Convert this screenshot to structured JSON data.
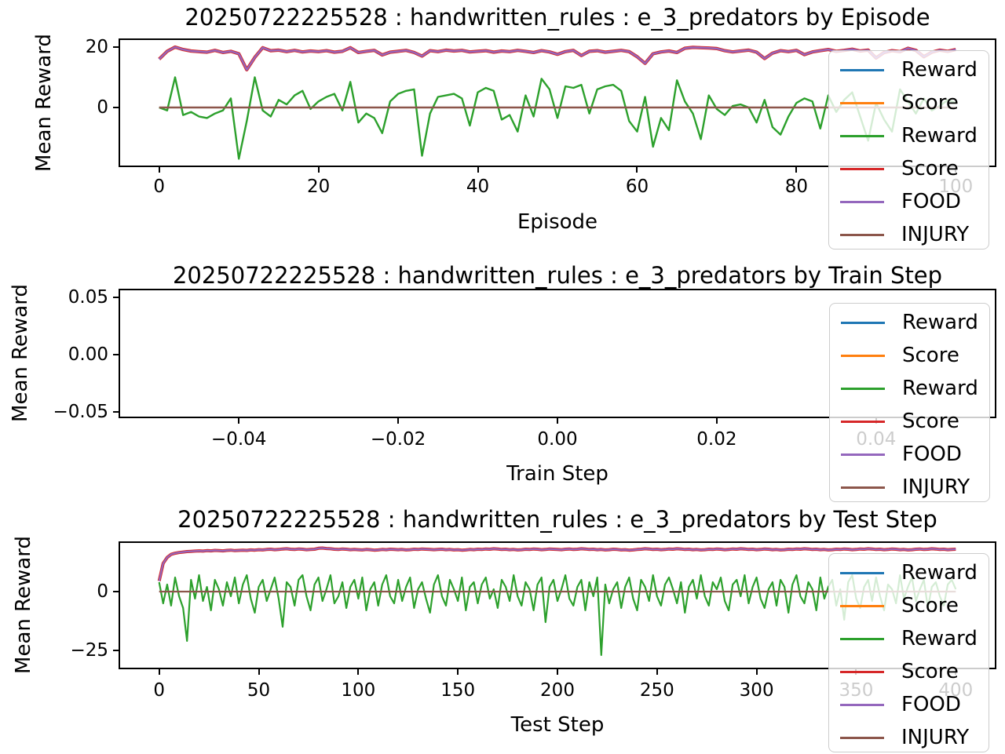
{
  "figure": {
    "background": "#ffffff"
  },
  "palette": {
    "blue": "#1f77b4",
    "orange": "#ff7f0e",
    "green": "#2ca02c",
    "red": "#d62728",
    "purple": "#9467bd",
    "brown": "#8c564b"
  },
  "legend": {
    "entries": [
      {
        "label": "Reward",
        "color": "#1f77b4"
      },
      {
        "label": "Score",
        "color": "#ff7f0e"
      },
      {
        "label": "Reward",
        "color": "#2ca02c"
      },
      {
        "label": "Score",
        "color": "#d62728"
      },
      {
        "label": "FOOD",
        "color": "#9467bd"
      },
      {
        "label": "INJURY",
        "color": "#8c564b"
      }
    ],
    "location": "upper right, overflowing axes",
    "frame_alpha": 0.8
  },
  "chart_data": [
    {
      "type": "line",
      "title": "20250722225528 : handwritten_rules : e_3_predators by Episode",
      "xlabel": "Episode",
      "ylabel": "Mean Reward",
      "xlim": [
        -5,
        105
      ],
      "ylim": [
        -19.5,
        22.6
      ],
      "grid": false,
      "xticks": [
        {
          "v": 0,
          "label": "0"
        },
        {
          "v": 20,
          "label": "20"
        },
        {
          "v": 40,
          "label": "40"
        },
        {
          "v": 60,
          "label": "60"
        },
        {
          "v": 80,
          "label": "80"
        },
        {
          "v": 100,
          "label": "100"
        }
      ],
      "yticks": [
        {
          "v": 20,
          "label": "20"
        },
        {
          "v": 0,
          "label": "0"
        }
      ],
      "x_start": 0,
      "x_step": 1,
      "series": [
        {
          "name": "Reward",
          "color": "#1f77b4",
          "visible": false,
          "note": "not visible, hidden behind other lines"
        },
        {
          "name": "Score",
          "color": "#ff7f0e",
          "visible": false,
          "note": "not visible, hidden behind FOOD"
        },
        {
          "name": "Reward",
          "color": "#2ca02c",
          "width": 2.4,
          "values": [
            0.0,
            -1.0,
            10.0,
            -2.5,
            -1.5,
            -3.0,
            -3.5,
            -2.0,
            -1.0,
            3.0,
            -17.0,
            -4.5,
            10.0,
            -1.0,
            -3.0,
            2.5,
            1.0,
            4.0,
            5.5,
            -0.5,
            2.0,
            3.5,
            4.5,
            -1.0,
            8.5,
            -5.0,
            -2.0,
            -3.5,
            -8.5,
            2.0,
            4.5,
            5.5,
            6.0,
            -16.0,
            -2.0,
            3.5,
            4.0,
            4.5,
            3.0,
            -6.0,
            5.0,
            6.5,
            5.5,
            -4.0,
            -2.5,
            -8.0,
            4.0,
            -3.0,
            9.5,
            6.0,
            -3.5,
            7.0,
            6.5,
            7.5,
            -2.0,
            6.0,
            7.0,
            7.5,
            5.5,
            -4.5,
            -8.0,
            3.5,
            -13.0,
            -3.5,
            -7.5,
            9.0,
            2.0,
            -2.0,
            -10.5,
            4.0,
            -0.5,
            -2.5,
            0.5,
            1.0,
            0.0,
            -5.0,
            2.5,
            -6.5,
            -9.0,
            -3.0,
            1.5,
            3.0,
            2.0,
            -7.0,
            4.0,
            -1.5,
            2.5,
            5.0,
            -3.0,
            -11.0,
            1.5,
            -4.0,
            -8.0,
            6.0,
            2.0,
            -2.0,
            3.0,
            -1.0,
            0.5,
            2.5,
            1.5
          ]
        },
        {
          "name": "Score",
          "color": "#d62728",
          "same_as": "FOOD",
          "width": 4.2,
          "note": "coincident with FOOD, shows as thin fringe"
        },
        {
          "name": "FOOD",
          "color": "#9467bd",
          "width": 2.4,
          "values": [
            16.0,
            18.6,
            20.0,
            19.2,
            18.7,
            18.5,
            18.3,
            18.9,
            18.2,
            18.6,
            17.8,
            12.5,
            16.6,
            19.8,
            18.8,
            19.0,
            18.5,
            18.9,
            18.4,
            18.7,
            18.5,
            18.8,
            18.3,
            18.6,
            19.8,
            18.2,
            18.6,
            18.9,
            17.4,
            18.3,
            18.6,
            18.9,
            18.2,
            17.0,
            18.8,
            18.5,
            19.0,
            18.7,
            18.9,
            18.4,
            18.6,
            18.8,
            18.3,
            18.7,
            18.5,
            18.9,
            18.6,
            18.2,
            18.8,
            18.4,
            17.6,
            18.5,
            18.9,
            17.2,
            18.6,
            18.8,
            18.3,
            18.6,
            18.9,
            18.5,
            16.8,
            14.6,
            17.8,
            18.4,
            18.7,
            18.2,
            19.6,
            19.9,
            19.8,
            19.7,
            19.5,
            18.8,
            18.4,
            18.7,
            19.0,
            18.3,
            16.2,
            18.0,
            18.8,
            18.5,
            18.9,
            17.5,
            18.4,
            18.8,
            19.2,
            18.6,
            18.9,
            19.3,
            18.7,
            19.0,
            16.4,
            18.2,
            18.8,
            18.5,
            19.6,
            18.9,
            16.8,
            18.3,
            19.0,
            18.6,
            19.2
          ]
        },
        {
          "name": "INJURY",
          "color": "#8c564b",
          "width": 2.4,
          "const": 0,
          "x_range": [
            0,
            100
          ]
        }
      ]
    },
    {
      "type": "line",
      "title": "20250722225528 : handwritten_rules : e_3_predators by Train Step",
      "xlabel": "Train Step",
      "ylabel": "Mean Reward",
      "xlim": [
        -0.055,
        0.055
      ],
      "ylim": [
        -0.0548,
        0.0568
      ],
      "grid": false,
      "xticks": [
        {
          "v": -0.04,
          "label": "−0.04"
        },
        {
          "v": -0.02,
          "label": "−0.02"
        },
        {
          "v": 0.0,
          "label": "0.00"
        },
        {
          "v": 0.02,
          "label": "0.02"
        },
        {
          "v": 0.04,
          "label": "0.04"
        }
      ],
      "yticks": [
        {
          "v": 0.05,
          "label": "0.05"
        },
        {
          "v": 0.0,
          "label": "0.00"
        },
        {
          "v": -0.05,
          "label": "−0.05"
        }
      ],
      "x_start": 0,
      "x_step": 1,
      "note": "empty axes, no data plotted",
      "series": [
        {
          "name": "Reward",
          "color": "#1f77b4",
          "visible": false
        },
        {
          "name": "Score",
          "color": "#ff7f0e",
          "visible": false
        },
        {
          "name": "Reward",
          "color": "#2ca02c",
          "visible": false
        },
        {
          "name": "Score",
          "color": "#d62728",
          "visible": false
        },
        {
          "name": "FOOD",
          "color": "#9467bd",
          "visible": false
        },
        {
          "name": "INJURY",
          "color": "#8c564b",
          "visible": false
        }
      ]
    },
    {
      "type": "line",
      "title": "20250722225528 : handwritten_rules : e_3_predators by Test Step",
      "xlabel": "Test Step",
      "ylabel": "Mean Reward",
      "xlim": [
        -20,
        420
      ],
      "ylim": [
        -32.7,
        21.0
      ],
      "grid": false,
      "xticks": [
        {
          "v": 0,
          "label": "0"
        },
        {
          "v": 50,
          "label": "50"
        },
        {
          "v": 100,
          "label": "100"
        },
        {
          "v": 150,
          "label": "150"
        },
        {
          "v": 200,
          "label": "200"
        },
        {
          "v": 250,
          "label": "250"
        },
        {
          "v": 300,
          "label": "300"
        },
        {
          "v": 350,
          "label": "350"
        },
        {
          "v": 400,
          "label": "400"
        }
      ],
      "yticks": [
        {
          "v": 0,
          "label": "0"
        },
        {
          "v": -25,
          "label": "−25"
        }
      ],
      "x_start": 0,
      "x_step": 2,
      "series": [
        {
          "name": "Reward",
          "color": "#1f77b4",
          "visible": false,
          "note": "not visible, hidden behind other lines"
        },
        {
          "name": "Score",
          "color": "#ff7f0e",
          "visible": false,
          "note": "not visible, hidden behind FOOD"
        },
        {
          "name": "Reward",
          "color": "#2ca02c",
          "width": 2.2,
          "values": [
            4,
            -5,
            3,
            -6,
            6,
            -2,
            -7,
            -21,
            5,
            -3,
            7,
            -4,
            2,
            -8,
            5,
            1,
            -6,
            4,
            -2,
            6,
            -5,
            3,
            7,
            -3,
            -9,
            2,
            5,
            -4,
            1,
            6,
            -3,
            -15,
            4,
            2,
            -6,
            5,
            7,
            -2,
            -8,
            3,
            6,
            -4,
            1,
            7,
            -5,
            -2,
            4,
            -7,
            2,
            5,
            -3,
            6,
            -8,
            1,
            4,
            -6,
            3,
            7,
            -2,
            -5,
            5,
            -4,
            2,
            6,
            -7,
            1,
            4,
            -3,
            -9,
            3,
            7,
            -2,
            -6,
            5,
            1,
            -4,
            6,
            -8,
            2,
            4,
            -5,
            3,
            6,
            -3,
            1,
            -7,
            5,
            2,
            -4,
            7,
            -2,
            -6,
            4,
            1,
            -8,
            3,
            6,
            -13,
            2,
            5,
            -4,
            1,
            7,
            -3,
            -6,
            2,
            5,
            -8,
            4,
            -2,
            6,
            -27,
            3,
            -5,
            1,
            4,
            -7,
            2,
            6,
            -3,
            -8,
            5,
            2,
            -4,
            7,
            -2,
            -6,
            3,
            6,
            1,
            -5,
            4,
            -9,
            2,
            5,
            -3,
            7,
            -2,
            -6,
            4,
            1,
            6,
            -4,
            -8,
            3,
            5,
            -2,
            7,
            -5,
            2,
            6,
            -3,
            -7,
            1,
            4,
            -6,
            5,
            2,
            -9,
            3,
            7,
            -2,
            -5,
            4,
            1,
            -8,
            6,
            -3,
            2,
            5,
            -6,
            1,
            -12,
            4,
            7,
            -3,
            -7,
            2,
            5,
            -4,
            6,
            -2,
            -8,
            3,
            1,
            -5,
            7,
            -3,
            2,
            6,
            -4,
            1,
            5,
            -7,
            2,
            4,
            -2,
            -6,
            3,
            5,
            1
          ]
        },
        {
          "name": "Score",
          "color": "#d62728",
          "same_as": "FOOD",
          "width": 4.0,
          "note": "coincident with FOOD, shows as thin fringe"
        },
        {
          "name": "FOOD",
          "color": "#9467bd",
          "width": 2.2,
          "values": [
            4.5,
            12.0,
            14.5,
            15.8,
            16.3,
            16.6,
            16.8,
            17.0,
            17.1,
            17.2,
            17.3,
            17.2,
            17.4,
            17.3,
            17.5,
            17.4,
            17.3,
            17.5,
            17.6,
            17.4,
            17.5,
            17.6,
            17.5,
            17.7,
            17.6,
            17.8,
            17.7,
            17.9,
            18.0,
            17.8,
            17.9,
            18.1,
            18.2,
            18.0,
            17.9,
            18.1,
            18.0,
            17.8,
            17.9,
            18.0,
            18.4,
            18.5,
            18.3,
            18.2,
            18.0,
            17.9,
            18.1,
            18.0,
            17.8,
            17.9,
            17.8,
            17.7,
            17.9,
            17.8,
            17.6,
            17.7,
            17.9,
            17.8,
            18.0,
            17.9,
            17.8,
            17.9,
            17.7,
            17.8,
            18.0,
            17.9,
            18.1,
            18.0,
            17.9,
            17.8,
            17.9,
            18.0,
            17.8,
            17.9,
            17.7,
            17.8,
            17.6,
            17.7,
            17.9,
            17.8,
            18.0,
            17.9,
            18.1,
            18.0,
            18.2,
            18.1,
            17.9,
            18.0,
            17.8,
            17.9,
            17.7,
            17.8,
            18.0,
            17.9,
            18.1,
            18.0,
            17.8,
            17.9,
            18.1,
            18.0,
            17.9,
            17.8,
            18.0,
            18.1,
            17.9,
            18.0,
            18.2,
            18.1,
            17.9,
            18.0,
            17.8,
            17.9,
            17.7,
            17.8,
            18.0,
            17.9,
            17.7,
            17.8,
            17.6,
            17.7,
            17.9,
            18.0,
            18.2,
            18.1,
            17.9,
            18.0,
            17.8,
            17.9,
            18.1,
            18.0,
            18.2,
            18.1,
            17.9,
            18.0,
            17.8,
            17.9,
            17.7,
            17.8,
            18.0,
            17.9,
            18.1,
            18.0,
            17.8,
            17.9,
            18.1,
            18.0,
            18.2,
            18.1,
            17.9,
            18.0,
            17.8,
            17.9,
            18.1,
            18.0,
            17.8,
            17.9,
            17.7,
            17.8,
            18.0,
            17.9,
            18.1,
            18.0,
            18.2,
            18.1,
            17.9,
            18.0,
            17.8,
            17.9,
            17.7,
            17.8,
            18.0,
            17.9,
            18.1,
            18.0,
            17.8,
            17.9,
            18.1,
            18.0,
            18.2,
            18.1,
            17.9,
            18.0,
            17.8,
            17.9,
            18.1,
            18.0,
            17.8,
            17.9,
            17.7,
            17.8,
            18.0,
            18.1,
            17.9,
            18.0,
            18.2,
            18.1,
            17.9,
            18.0,
            17.8,
            17.9,
            18.0
          ]
        },
        {
          "name": "INJURY",
          "color": "#8c564b",
          "width": 2.2,
          "const": 0,
          "x_range": [
            0,
            400
          ]
        }
      ]
    }
  ]
}
